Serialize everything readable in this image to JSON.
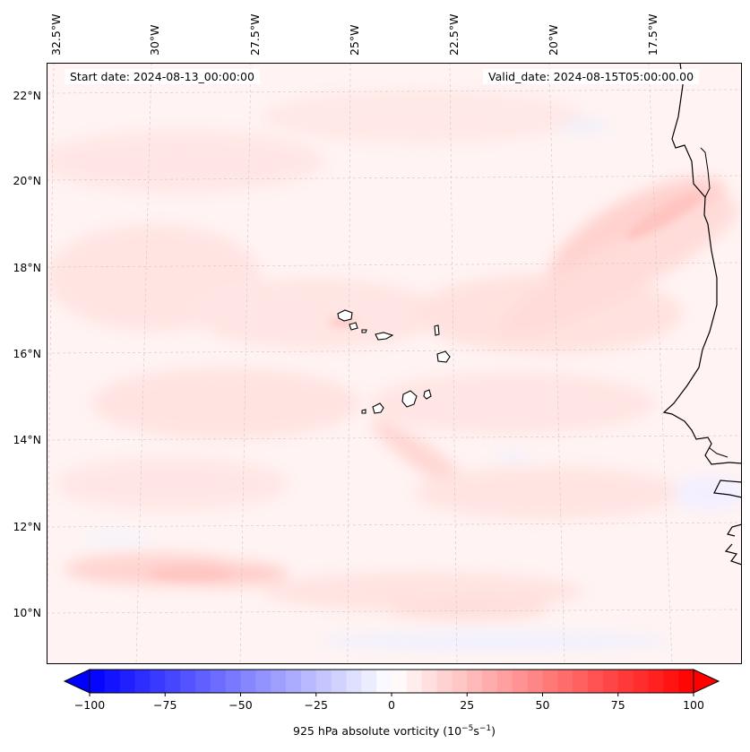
{
  "map": {
    "start_label": "Start date: 2024-08-13_00:00:00",
    "valid_label": "Valid_date: 2024-08-15T05:00:00.00",
    "longitude_labels": [
      "32.5°W",
      "30°W",
      "27.5°W",
      "25°W",
      "22.5°W",
      "20°W",
      "17.5°W"
    ],
    "latitude_labels": [
      "22°N",
      "20°N",
      "18°N",
      "16°N",
      "14°N",
      "12°N",
      "10°N"
    ],
    "variable": "925 hPa absolute vorticity"
  },
  "colorbar": {
    "ticks": [
      "−100",
      "−75",
      "−50",
      "−25",
      "0",
      "25",
      "50",
      "75",
      "100"
    ],
    "title_text": "925 hPa absolute vorticity (10",
    "title_exp1": "−5",
    "title_mid": "s",
    "title_exp2": "−1",
    "title_end": ")",
    "range": [
      -100,
      100
    ],
    "levels": 40,
    "colors": {
      "negative": "#0000ff",
      "zero": "#ffffff",
      "positive": "#ff0000"
    }
  }
}
